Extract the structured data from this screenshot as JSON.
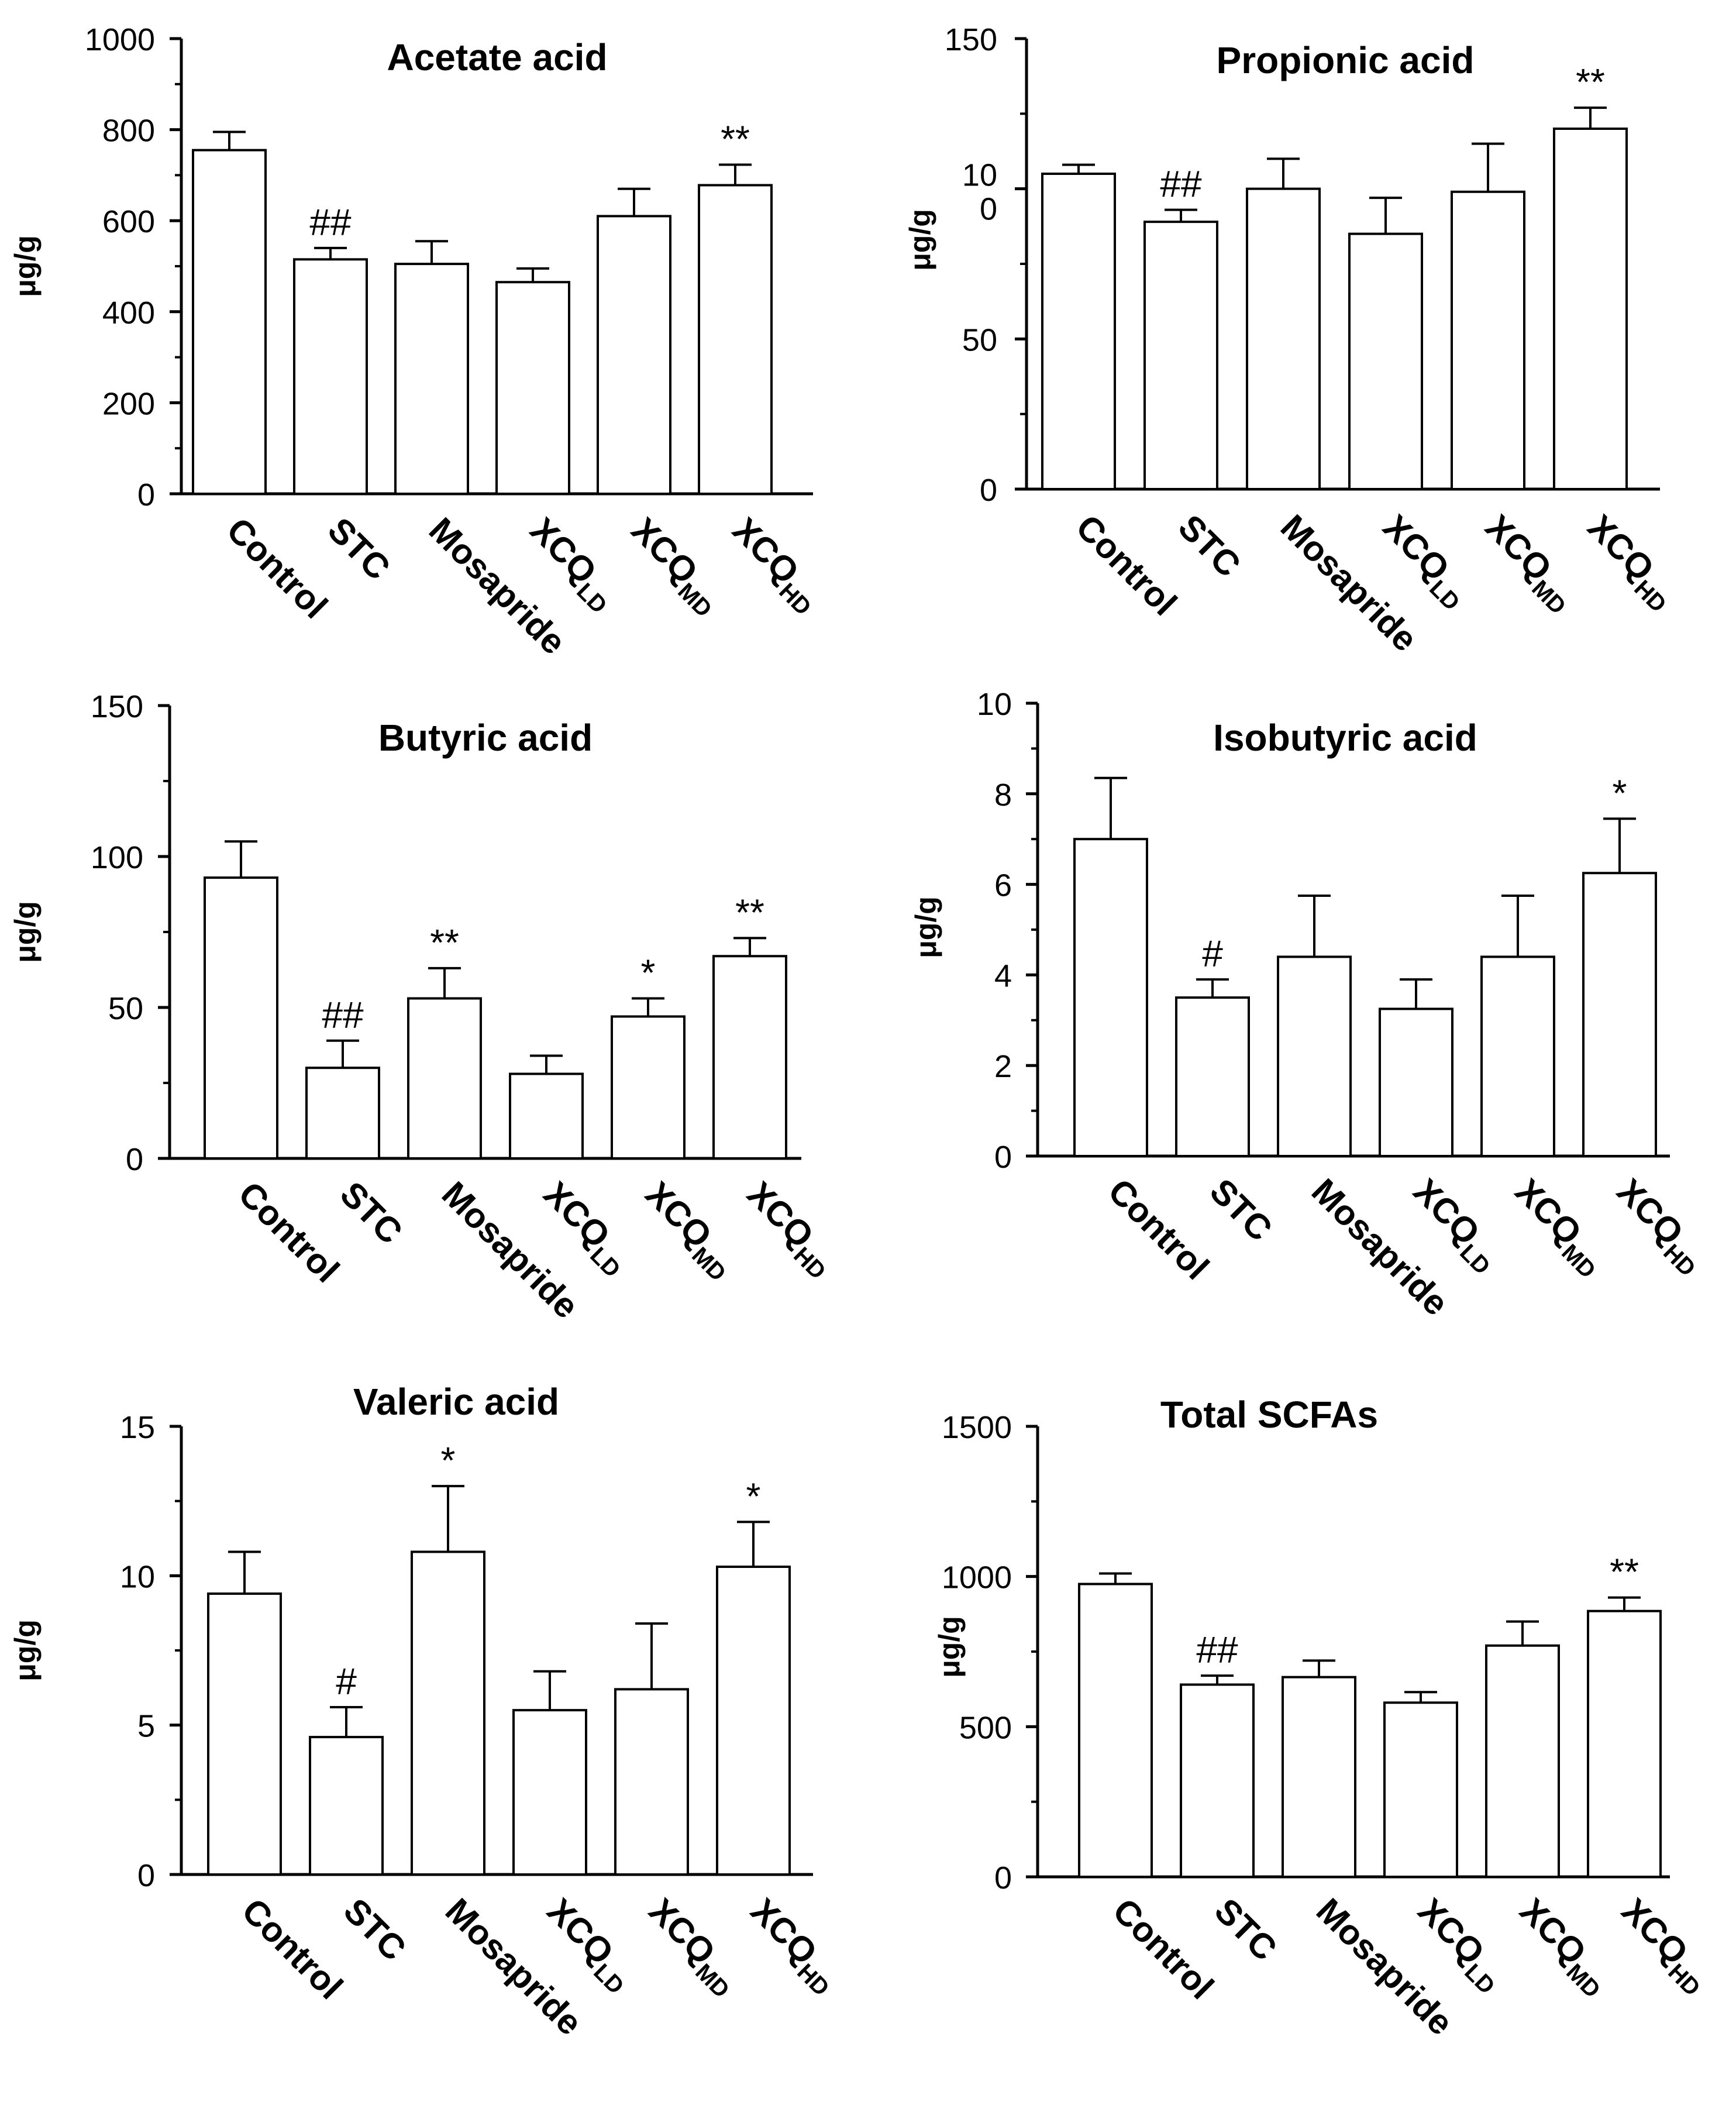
{
  "chart_data": [
    {
      "type": "bar",
      "title": "Acetate acid",
      "ylabel": "μg/g",
      "ylim": [
        0,
        1000
      ],
      "yticks": [
        "0",
        "200",
        "400",
        "600",
        "800",
        "1000"
      ],
      "categories": [
        {
          "main": "Control",
          "sub": ""
        },
        {
          "main": "STC",
          "sub": ""
        },
        {
          "main": "Mosapride",
          "sub": ""
        },
        {
          "main": "XCQ",
          "sub": "LD"
        },
        {
          "main": "XCQ",
          "sub": "MD"
        },
        {
          "main": "XCQ",
          "sub": "HD"
        }
      ],
      "values": [
        755,
        515,
        505,
        465,
        610,
        678
      ],
      "errors": [
        40,
        25,
        50,
        30,
        60,
        45
      ],
      "annotations": [
        "",
        "##",
        "",
        "",
        "",
        "**"
      ]
    },
    {
      "type": "bar",
      "title": "Propionic acid",
      "ylabel": "μg/g",
      "ylim": [
        0,
        150
      ],
      "yticks": [
        "0",
        "50",
        "10\n0",
        "150"
      ],
      "categories": [
        {
          "main": "Control",
          "sub": ""
        },
        {
          "main": "STC",
          "sub": ""
        },
        {
          "main": "Mosapride",
          "sub": ""
        },
        {
          "main": "XCQ",
          "sub": "LD"
        },
        {
          "main": "XCQ",
          "sub": "MD"
        },
        {
          "main": "XCQ",
          "sub": "HD"
        }
      ],
      "values": [
        105,
        89,
        100,
        85,
        99,
        120
      ],
      "errors": [
        3,
        4,
        10,
        12,
        16,
        7
      ],
      "annotations": [
        "",
        "##",
        "",
        "",
        "",
        "**"
      ]
    },
    {
      "type": "bar",
      "title": "Butyric acid",
      "ylabel": "μg/g",
      "ylim": [
        0,
        150
      ],
      "yticks": [
        "0",
        "50",
        "100",
        "150"
      ],
      "categories": [
        {
          "main": "Control",
          "sub": ""
        },
        {
          "main": "STC",
          "sub": ""
        },
        {
          "main": "Mosapride",
          "sub": ""
        },
        {
          "main": "XCQ",
          "sub": "LD"
        },
        {
          "main": "XCQ",
          "sub": "MD"
        },
        {
          "main": "XCQ",
          "sub": "HD"
        }
      ],
      "values": [
        93,
        30,
        53,
        28,
        47,
        67
      ],
      "errors": [
        12,
        9,
        10,
        6,
        6,
        6
      ],
      "annotations": [
        "",
        "##",
        "**",
        "",
        "*",
        "**"
      ]
    },
    {
      "type": "bar",
      "title": "Isobutyric acid",
      "ylabel": "μg/g",
      "ylim": [
        0,
        10
      ],
      "yticks": [
        "0",
        "2",
        "4",
        "6",
        "8",
        "10"
      ],
      "categories": [
        {
          "main": "Control",
          "sub": ""
        },
        {
          "main": "STC",
          "sub": ""
        },
        {
          "main": "Mosapride",
          "sub": ""
        },
        {
          "main": "XCQ",
          "sub": "LD"
        },
        {
          "main": "XCQ",
          "sub": "MD"
        },
        {
          "main": "XCQ",
          "sub": "HD"
        }
      ],
      "values": [
        7.0,
        3.5,
        4.4,
        3.25,
        4.4,
        6.25
      ],
      "errors": [
        1.35,
        0.4,
        1.35,
        0.65,
        1.35,
        1.2
      ],
      "annotations": [
        "",
        "#",
        "",
        "",
        "",
        "*"
      ]
    },
    {
      "type": "bar",
      "title": "Valeric acid",
      "ylabel": "μg/g",
      "ylim": [
        0,
        15
      ],
      "yticks": [
        "0",
        "5",
        "10",
        "15"
      ],
      "categories": [
        {
          "main": "Control",
          "sub": ""
        },
        {
          "main": "STC",
          "sub": ""
        },
        {
          "main": "Mosapride",
          "sub": ""
        },
        {
          "main": "XCQ",
          "sub": "LD"
        },
        {
          "main": "XCQ",
          "sub": "MD"
        },
        {
          "main": "XCQ",
          "sub": "HD"
        }
      ],
      "values": [
        9.4,
        4.6,
        10.8,
        5.5,
        6.2,
        10.3
      ],
      "errors": [
        1.4,
        1.0,
        2.2,
        1.3,
        2.2,
        1.5
      ],
      "annotations": [
        "",
        "#",
        "*",
        "",
        "",
        "*"
      ]
    },
    {
      "type": "bar",
      "title": "Total SCFAs",
      "ylabel": "μg/g",
      "ylim": [
        0,
        1500
      ],
      "yticks": [
        "0",
        "500",
        "1000",
        "1500"
      ],
      "categories": [
        {
          "main": "Control",
          "sub": ""
        },
        {
          "main": "STC",
          "sub": ""
        },
        {
          "main": "Mosapride",
          "sub": ""
        },
        {
          "main": "XCQ",
          "sub": "LD"
        },
        {
          "main": "XCQ",
          "sub": "MD"
        },
        {
          "main": "XCQ",
          "sub": "HD"
        }
      ],
      "values": [
        975,
        640,
        665,
        580,
        770,
        885
      ],
      "errors": [
        35,
        30,
        55,
        35,
        80,
        45
      ],
      "annotations": [
        "",
        "##",
        "",
        "",
        "",
        "**"
      ]
    }
  ]
}
